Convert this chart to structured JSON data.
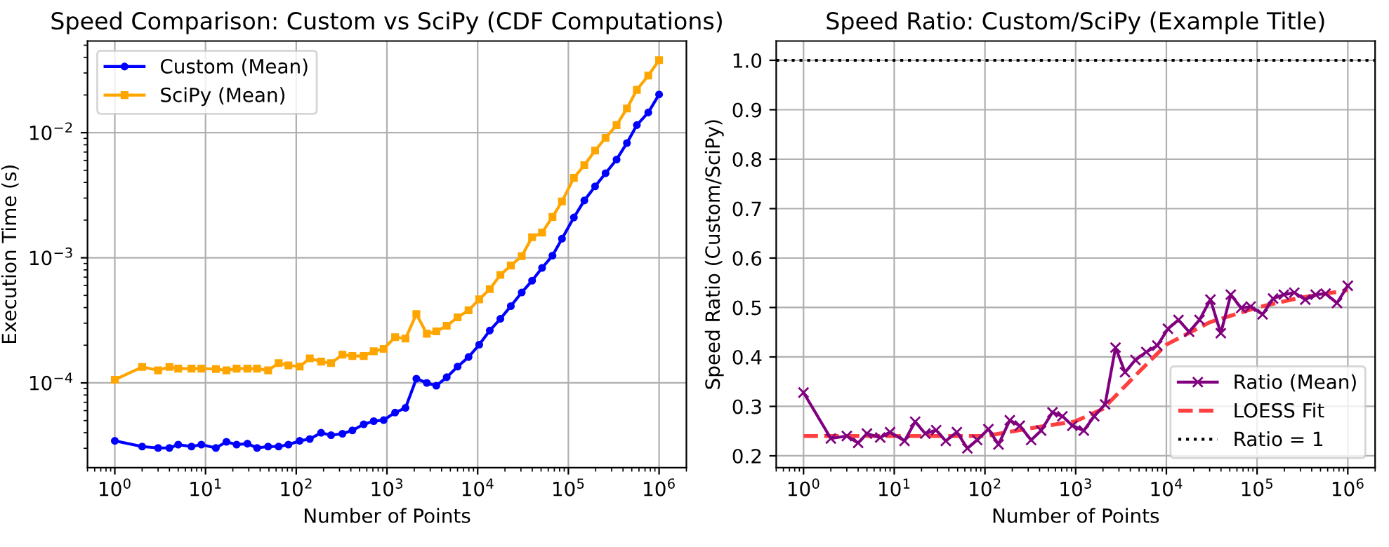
{
  "chart_data": [
    {
      "type": "line",
      "title": "Speed Comparison: Custom vs SciPy (CDF Computations)",
      "xlabel": "Number of Points",
      "ylabel": "Execution Time (s)",
      "log": "xy",
      "grid": true,
      "legend": "top left",
      "xlim": [
        0.5,
        2000000
      ],
      "ylim": [
        2.1e-05,
        0.054
      ],
      "xticks": [
        {
          "value": 1,
          "label": "10$^{0}$"
        },
        {
          "value": 10,
          "label": "10$^{1}$"
        },
        {
          "value": 100,
          "label": "10$^{2}$"
        },
        {
          "value": 1000,
          "label": "10$^{3}$"
        },
        {
          "value": 10000,
          "label": "10$^{4}$"
        },
        {
          "value": 100000,
          "label": "10$^{5}$"
        },
        {
          "value": 1000000,
          "label": "10$^{6}$"
        }
      ],
      "yticks": [
        {
          "value": 0.0001,
          "label": "10$^{−4}$"
        },
        {
          "value": 0.001,
          "label": "10$^{−3}$"
        },
        {
          "value": 0.01,
          "label": "10$^{−2}$"
        }
      ],
      "x": [
        1,
        2,
        3,
        4,
        5,
        7,
        9,
        13,
        17,
        22,
        29,
        37,
        49,
        64,
        82,
        109,
        141,
        188,
        242,
        323,
        416,
        555,
        715,
        920,
        1230,
        1600,
        2110,
        2750,
        3500,
        4560,
        6010,
        7940,
        10400,
        13600,
        17800,
        23200,
        30600,
        39800,
        51300,
        66800,
        85000,
        115000,
        150000,
        197000,
        257000,
        340000,
        442000,
        569000,
        760000,
        1000000
      ],
      "series": [
        {
          "name": "Custom (Mean)",
          "color": "#0000ff",
          "marker": "circle",
          "values": [
            3.44e-05,
            3.1e-05,
            3.02e-05,
            3.02e-05,
            3.21e-05,
            3.1e-05,
            3.21e-05,
            3.02e-05,
            3.38e-05,
            3.21e-05,
            3.27e-05,
            3.02e-05,
            3.1e-05,
            3.1e-05,
            3.21e-05,
            3.44e-05,
            3.56e-05,
            3.99e-05,
            3.82e-05,
            3.92e-05,
            4.17e-05,
            4.67e-05,
            4.95e-05,
            5.04e-05,
            5.79e-05,
            6.31e-05,
            0.000108,
            0.0001,
            9.49e-05,
            0.000111,
            0.000135,
            0.000161,
            0.000202,
            0.000262,
            0.000325,
            0.000411,
            0.000528,
            0.000656,
            0.00083,
            0.00104,
            0.00142,
            0.0021,
            0.00287,
            0.00372,
            0.00474,
            0.0061,
            0.00826,
            0.0115,
            0.0145,
            0.0202
          ]
        },
        {
          "name": "SciPy (Mean)",
          "color": "#ffa500",
          "marker": "square",
          "values": [
            0.000106,
            0.000134,
            0.000126,
            0.000134,
            0.00013,
            0.00013,
            0.00013,
            0.000129,
            0.000126,
            0.00013,
            0.00013,
            0.00013,
            0.000126,
            0.000144,
            0.000138,
            0.000135,
            0.000157,
            0.000148,
            0.000144,
            0.000168,
            0.000164,
            0.000164,
            0.000179,
            0.000187,
            0.000232,
            0.000226,
            0.000355,
            0.000247,
            0.000258,
            0.000286,
            0.000334,
            0.00038,
            0.000465,
            0.000562,
            0.000729,
            0.000867,
            0.00103,
            0.00146,
            0.00159,
            0.00212,
            0.00282,
            0.00435,
            0.0055,
            0.00719,
            0.00909,
            0.0115,
            0.0156,
            0.022,
            0.0286,
            0.038
          ]
        }
      ]
    },
    {
      "type": "line",
      "title": "Speed Ratio: Custom/SciPy (Example Title)",
      "xlabel": "Number of Points",
      "ylabel": "Speed Ratio (Custom/SciPy)",
      "log": "x",
      "grid": true,
      "legend": "bottom right",
      "xlim": [
        0.5,
        2000000
      ],
      "ylim": [
        0.176,
        1.039
      ],
      "xticks": [
        {
          "value": 1,
          "label": "10$^{0}$"
        },
        {
          "value": 10,
          "label": "10$^{1}$"
        },
        {
          "value": 100,
          "label": "10$^{2}$"
        },
        {
          "value": 1000,
          "label": "10$^{3}$"
        },
        {
          "value": 10000,
          "label": "10$^{4}$"
        },
        {
          "value": 100000,
          "label": "10$^{5}$"
        },
        {
          "value": 1000000,
          "label": "10$^{6}$"
        }
      ],
      "yticks": [
        {
          "value": 0.2,
          "label": "0.2"
        },
        {
          "value": 0.3,
          "label": "0.3"
        },
        {
          "value": 0.4,
          "label": "0.4"
        },
        {
          "value": 0.5,
          "label": "0.5"
        },
        {
          "value": 0.6,
          "label": "0.6"
        },
        {
          "value": 0.7,
          "label": "0.7"
        },
        {
          "value": 0.8,
          "label": "0.8"
        },
        {
          "value": 0.9,
          "label": "0.9"
        },
        {
          "value": 1.0,
          "label": "1.0"
        }
      ],
      "x": [
        1,
        2,
        3,
        4,
        5,
        7,
        9,
        13,
        17,
        22,
        29,
        37,
        49,
        64,
        82,
        109,
        141,
        188,
        242,
        323,
        416,
        555,
        715,
        920,
        1230,
        1600,
        2110,
        2750,
        3500,
        4560,
        6010,
        7940,
        10400,
        13600,
        17800,
        23200,
        30600,
        39800,
        51300,
        66800,
        85000,
        115000,
        150000,
        197000,
        257000,
        340000,
        442000,
        569000,
        760000,
        1000000
      ],
      "series": [
        {
          "name": "Ratio (Mean)",
          "color": "#800080",
          "marker": "cross",
          "values": [
            0.328,
            0.235,
            0.24,
            0.226,
            0.245,
            0.237,
            0.248,
            0.23,
            0.269,
            0.245,
            0.252,
            0.23,
            0.248,
            0.215,
            0.232,
            0.254,
            0.223,
            0.272,
            0.261,
            0.232,
            0.251,
            0.288,
            0.28,
            0.261,
            0.251,
            0.28,
            0.304,
            0.419,
            0.369,
            0.394,
            0.41,
            0.423,
            0.457,
            0.475,
            0.451,
            0.475,
            0.516,
            0.448,
            0.526,
            0.499,
            0.502,
            0.486,
            0.518,
            0.526,
            0.53,
            0.516,
            0.526,
            0.528,
            0.509,
            0.544
          ]
        },
        {
          "name": "LOESS Fit",
          "color": "#ff4040",
          "line_style": "dashed",
          "marker": "none",
          "x": [
            1,
            100,
            300,
            1000,
            2000,
            5000,
            10000,
            30000,
            100000,
            300000,
            1000000
          ],
          "values": [
            0.24,
            0.24,
            0.255,
            0.27,
            0.295,
            0.37,
            0.425,
            0.47,
            0.5,
            0.52,
            0.535
          ]
        }
      ],
      "ref_lines": [
        {
          "axis": "y",
          "value": 1.0,
          "label": "Ratio = 1",
          "color": "#000000",
          "line_style": "dotted"
        }
      ]
    }
  ]
}
